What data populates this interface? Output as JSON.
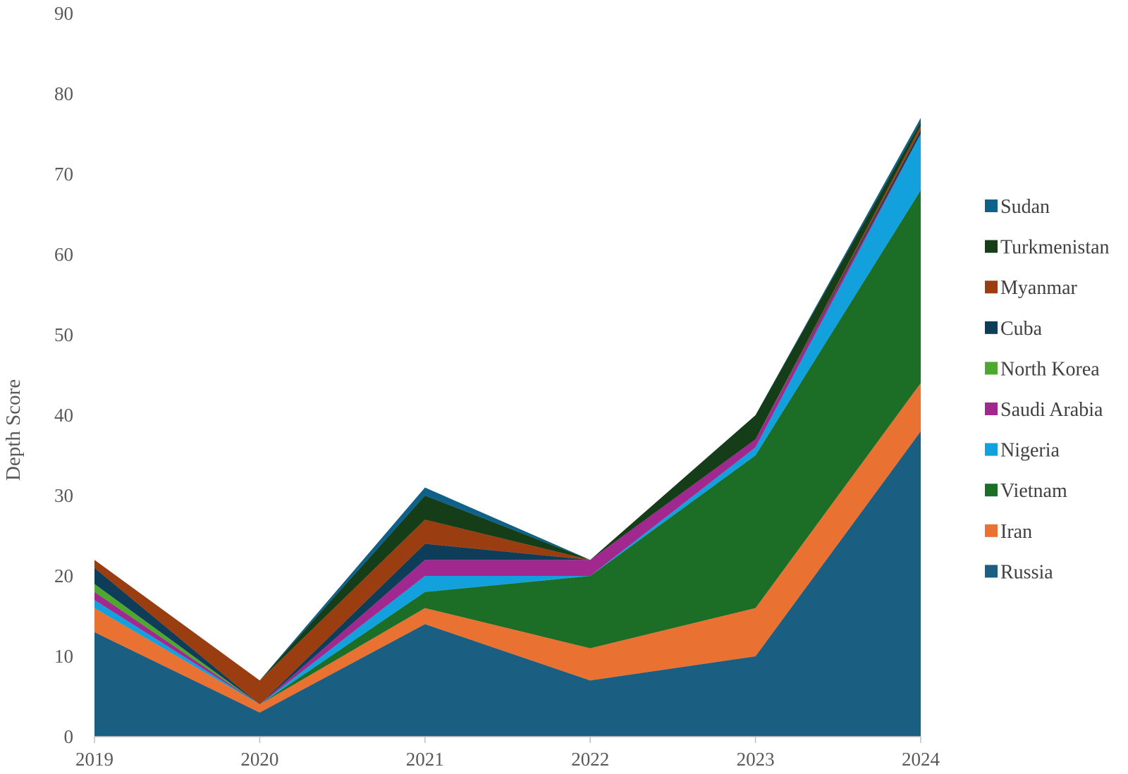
{
  "chart_data": {
    "type": "area",
    "stacked": true,
    "ylabel": "Depth Score",
    "xlabel": "",
    "ylim": [
      0,
      90
    ],
    "y_ticks": [
      0,
      10,
      20,
      30,
      40,
      50,
      60,
      70,
      80,
      90
    ],
    "categories": [
      "2019",
      "2020",
      "2021",
      "2022",
      "2023",
      "2024"
    ],
    "grid": false,
    "legend_position": "right",
    "series": [
      {
        "name": "Russia",
        "color": "#1a5f82",
        "values": [
          13,
          3,
          14,
          7,
          10,
          38
        ]
      },
      {
        "name": "Iran",
        "color": "#e97132",
        "values": [
          3,
          1,
          2,
          4,
          6,
          6
        ]
      },
      {
        "name": "Vietnam",
        "color": "#1c6e26",
        "values": [
          0,
          0,
          2,
          9,
          19,
          24
        ]
      },
      {
        "name": "Nigeria",
        "color": "#12a1dc",
        "values": [
          1,
          0,
          2,
          0,
          1,
          7
        ]
      },
      {
        "name": "Saudi Arabia",
        "color": "#a0288f",
        "values": [
          1,
          0,
          2,
          2,
          1,
          0
        ]
      },
      {
        "name": "North Korea",
        "color": "#4ea72e",
        "values": [
          1,
          0,
          0,
          0,
          0,
          0
        ]
      },
      {
        "name": "Cuba",
        "color": "#0e3d59",
        "values": [
          2,
          0,
          2,
          0,
          0,
          0.5
        ]
      },
      {
        "name": "Myanmar",
        "color": "#9a3e12",
        "values": [
          1,
          3,
          3,
          0,
          0,
          0.5
        ]
      },
      {
        "name": "Turkmenistan",
        "color": "#143d18",
        "values": [
          0,
          0,
          3,
          0,
          3,
          0.5
        ]
      },
      {
        "name": "Sudan",
        "color": "#0f6189",
        "values": [
          0,
          0,
          1,
          0,
          0,
          0.5
        ]
      }
    ]
  }
}
